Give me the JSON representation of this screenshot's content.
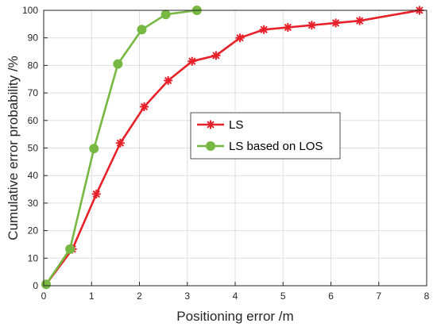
{
  "chart_data": {
    "type": "line",
    "xlabel": "Positioning error /m",
    "ylabel": "Cumulative error probability /%",
    "xlim": [
      0,
      8
    ],
    "ylim": [
      0,
      100
    ],
    "xticks": [
      0,
      1,
      2,
      3,
      4,
      5,
      6,
      7,
      8
    ],
    "yticks": [
      0,
      10,
      20,
      30,
      40,
      50,
      60,
      70,
      80,
      90,
      100
    ],
    "grid": true,
    "legend_position": "center-right",
    "series": [
      {
        "name": "LS",
        "color": "#e8202a",
        "marker": "asterisk",
        "x": [
          0.05,
          0.6,
          1.1,
          1.6,
          2.1,
          2.6,
          3.1,
          3.6,
          4.1,
          4.6,
          5.1,
          5.6,
          6.1,
          6.6,
          7.85
        ],
        "y": [
          0.5,
          13.3,
          33.3,
          51.8,
          65.0,
          74.5,
          81.5,
          83.6,
          90.0,
          93.0,
          93.8,
          94.6,
          95.4,
          96.2,
          100
        ]
      },
      {
        "name": "LS based on LOS",
        "color": "#77b843",
        "marker": "circle",
        "x": [
          0.05,
          0.55,
          1.05,
          1.55,
          2.05,
          2.55,
          3.2
        ],
        "y": [
          0.5,
          13.3,
          49.8,
          80.5,
          93.0,
          98.5,
          100
        ]
      }
    ]
  }
}
